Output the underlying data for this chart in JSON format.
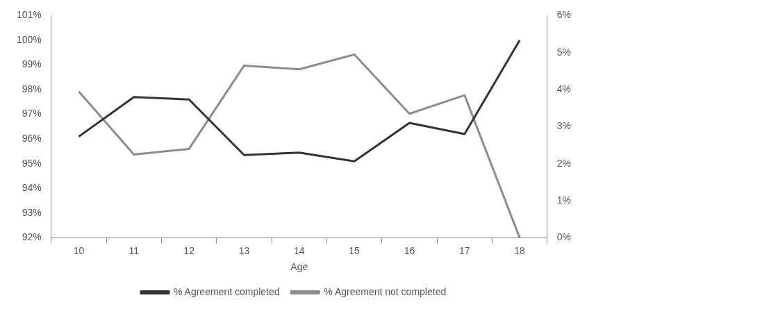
{
  "chart_data": {
    "type": "line",
    "xlabel": "Age",
    "categories": [
      "10",
      "11",
      "12",
      "13",
      "14",
      "15",
      "16",
      "17",
      "18"
    ],
    "series": [
      {
        "name": "% Agreement completed",
        "color": "#333333",
        "values": [
          96.1,
          97.7,
          97.6,
          95.35,
          95.45,
          95.1,
          96.65,
          96.2,
          100.0
        ]
      },
      {
        "name": "% Agreement not completed",
        "color": "#8c8c8c",
        "axis": "y2",
        "values": [
          3.95,
          2.25,
          2.4,
          4.65,
          4.55,
          4.95,
          3.35,
          3.85,
          0
        ]
      }
    ],
    "ylim": [
      92,
      101
    ],
    "yticks": [
      {
        "value": 92,
        "label": "92%"
      },
      {
        "value": 93,
        "label": "93%"
      },
      {
        "value": 94,
        "label": "94%"
      },
      {
        "value": 95,
        "label": "95%"
      },
      {
        "value": 96,
        "label": "96%"
      },
      {
        "value": 97,
        "label": "97%"
      },
      {
        "value": 98,
        "label": "98%"
      },
      {
        "value": 99,
        "label": "99%"
      },
      {
        "value": 100,
        "label": "100%"
      },
      {
        "value": 101,
        "label": "101%"
      }
    ],
    "y2lim": [
      0,
      6
    ],
    "y2ticks": [
      {
        "value": 0,
        "label": "0%"
      },
      {
        "value": 1,
        "label": "1%"
      },
      {
        "value": 2,
        "label": "2%"
      },
      {
        "value": 3,
        "label": "3%"
      },
      {
        "value": 4,
        "label": "4%"
      },
      {
        "value": 5,
        "label": "5%"
      },
      {
        "value": 6,
        "label": "6%"
      }
    ],
    "grid": false,
    "legend": "bottom",
    "marker": "none",
    "line_style": "solid"
  }
}
